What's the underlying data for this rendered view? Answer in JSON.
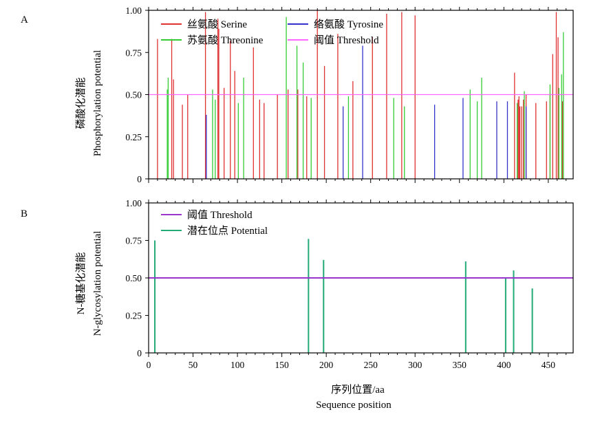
{
  "chart_data": [
    {
      "panel": "A",
      "type": "bar",
      "ylabel_cn": "磷酸化潜能",
      "ylabel_en": "Phosphorylation potential",
      "ylim": [
        0,
        1.0
      ],
      "xlim": [
        0,
        478
      ],
      "yticks": [
        "0",
        "0.25",
        "0.50",
        "0.75",
        "1.00"
      ],
      "series": [
        {
          "name": "丝氨酸 Serine",
          "color": "#e03030",
          "x": [
            10,
            26,
            28,
            38,
            44,
            64,
            78,
            79,
            85,
            92,
            97,
            118,
            125,
            130,
            145,
            157,
            168,
            178,
            190,
            198,
            213,
            230,
            252,
            268,
            285,
            300,
            412,
            416,
            417,
            418,
            420,
            422,
            425,
            436,
            448,
            452,
            455,
            459,
            461,
            466
          ],
          "values": [
            0.83,
            0.83,
            0.59,
            0.44,
            0.5,
            0.99,
            0.95,
            0.89,
            0.54,
            0.82,
            0.64,
            0.78,
            0.47,
            0.45,
            0.5,
            0.53,
            0.53,
            0.49,
            1.0,
            0.67,
            0.86,
            0.58,
            0.84,
            0.98,
            0.99,
            0.97,
            0.63,
            0.47,
            0.49,
            0.43,
            0.43,
            0.47,
            0.5,
            0.45,
            0.46,
            0.51,
            0.74,
            0.99,
            0.84,
            0.46
          ]
        },
        {
          "name": "苏氨酸 Threonine",
          "color": "#33cc33",
          "x": [
            21,
            22,
            72,
            75,
            101,
            107,
            155,
            167,
            174,
            183,
            225,
            276,
            288,
            362,
            370,
            375,
            415,
            423,
            452,
            462,
            465,
            467
          ],
          "values": [
            0.53,
            0.6,
            0.53,
            0.47,
            0.45,
            0.6,
            0.96,
            0.79,
            0.69,
            0.48,
            0.49,
            0.48,
            0.43,
            0.53,
            0.46,
            0.6,
            0.45,
            0.52,
            0.56,
            0.54,
            0.62,
            0.87
          ]
        },
        {
          "name": "络氨酸 Tyrosine",
          "color": "#3333cc",
          "x": [
            65,
            219,
            241,
            322,
            354,
            392,
            404,
            425
          ],
          "values": [
            0.38,
            0.43,
            0.79,
            0.44,
            0.48,
            0.46,
            0.46,
            0.43
          ]
        },
        {
          "name": "阈值 Threshold",
          "color": "#ff66ff",
          "type": "hline",
          "value": 0.5
        }
      ]
    },
    {
      "panel": "B",
      "type": "bar",
      "ylabel_cn": "N-糖基化潜能",
      "ylabel_en": "N-glycosylation potential",
      "xlabel_cn": "序列位置/aa",
      "xlabel_en": "Sequence position",
      "ylim": [
        0,
        1.0
      ],
      "xlim": [
        0,
        478
      ],
      "xticks": [
        "0",
        "50",
        "100",
        "150",
        "200",
        "250",
        "300",
        "350",
        "400",
        "450"
      ],
      "yticks": [
        "0",
        "0.25",
        "0.50",
        "0.75",
        "1.00"
      ],
      "series": [
        {
          "name": "阈值 Threshold",
          "color": "#9933cc",
          "type": "hline",
          "value": 0.5
        },
        {
          "name": "潜在位点 Potential",
          "color": "#22aa77",
          "x": [
            7,
            180,
            197,
            357,
            402,
            411,
            432
          ],
          "values": [
            0.75,
            0.76,
            0.62,
            0.61,
            0.5,
            0.55,
            0.43
          ]
        }
      ]
    }
  ],
  "labels": {
    "panel_a": "A",
    "panel_b": "B"
  }
}
